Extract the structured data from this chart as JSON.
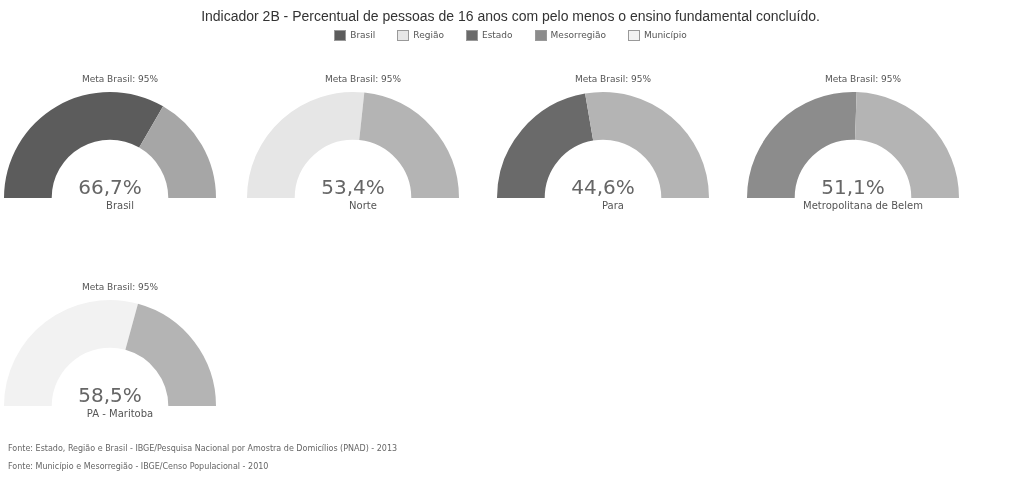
{
  "chart_data": [
    {
      "type": "other",
      "title": "Indicador 2B - Percentual de pessoas de 16 anos com pelo menos o ensino fundamental concluído.",
      "categories": [
        "Brasil",
        "Região",
        "Estado",
        "Mesorregião",
        "Município"
      ],
      "colors": [
        "#5c5c5c",
        "#e6e6e6",
        "#6a6a6a",
        "#8c8c8c",
        "#f2f2f2"
      ],
      "annotations": [
        "Fonte: Estado, Região e Brasil - IBGE/Pesquisa Nacional por Amostra de Domicílios (PNAD) - 2013",
        "Fonte: Município e Mesorregião - IBGE/Censo Populacional - 2010"
      ]
    },
    {
      "type": "donut",
      "title": "Meta Brasil: 95%",
      "xlabel": "Brasil",
      "categories": [
        null,
        null
      ],
      "values": [
        66.7,
        33.3
      ],
      "colors": [
        "#5c5c5c",
        "#a6a6a6"
      ],
      "annotations": [
        "66,7%"
      ]
    },
    {
      "type": "donut",
      "title": "Meta Brasil: 95%",
      "xlabel": "Norte",
      "categories": [
        null,
        null
      ],
      "values": [
        53.4,
        46.6
      ],
      "colors": [
        "#e6e6e6",
        "#b4b4b4"
      ],
      "annotations": [
        "53,4%"
      ]
    },
    {
      "type": "donut",
      "title": "Meta Brasil: 95%",
      "xlabel": "Para",
      "categories": [
        null,
        null
      ],
      "values": [
        44.6,
        55.4
      ],
      "colors": [
        "#6a6a6a",
        "#b4b4b4"
      ],
      "annotations": [
        "44,6%"
      ]
    },
    {
      "type": "donut",
      "title": "Meta Brasil: 95%",
      "xlabel": "Metropolitana de Belem",
      "categories": [
        null,
        null
      ],
      "values": [
        51.1,
        48.9
      ],
      "colors": [
        "#8c8c8c",
        "#b4b4b4"
      ],
      "annotations": [
        "51,1%"
      ]
    },
    {
      "type": "donut",
      "title": "Meta Brasil: 95%",
      "xlabel": "PA - Maritoba",
      "categories": [
        null,
        null
      ],
      "values": [
        58.5,
        41.5
      ],
      "colors": [
        "#f2f2f2",
        "#b4b4b4"
      ],
      "annotations": [
        "58,5%"
      ]
    }
  ]
}
